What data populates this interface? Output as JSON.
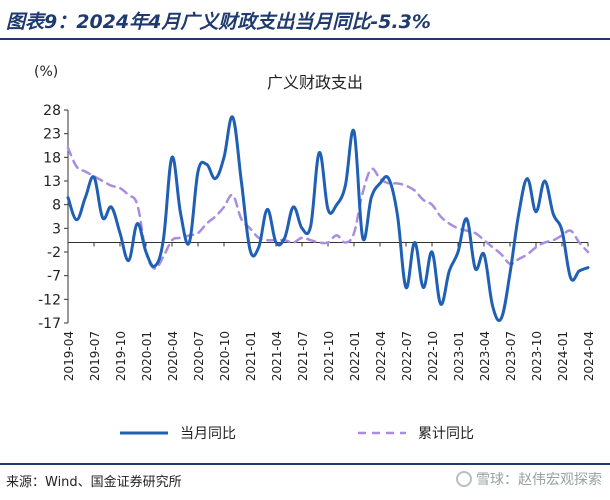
{
  "header": {
    "title": "图表9：2024年4月广义财政支出当月同比-5.3%"
  },
  "footer": {
    "source": "来源：Wind、国金证券研究所",
    "watermark": "雪球：赵伟宏观探索"
  },
  "chart_data": {
    "type": "line",
    "title": "广义财政支出",
    "y_unit": "(%)",
    "ylim": [
      -17,
      28
    ],
    "yticks": [
      28,
      23,
      18,
      13,
      8,
      3,
      -2,
      -7,
      -12,
      -17
    ],
    "baseline": 0,
    "x": [
      "2019-04",
      "2019-05",
      "2019-06",
      "2019-07",
      "2019-08",
      "2019-09",
      "2019-10",
      "2019-11",
      "2019-12",
      "2020-01",
      "2020-02",
      "2020-03",
      "2020-04",
      "2020-05",
      "2020-06",
      "2020-07",
      "2020-08",
      "2020-09",
      "2020-10",
      "2020-11",
      "2020-12",
      "2021-01",
      "2021-02",
      "2021-03",
      "2021-04",
      "2021-05",
      "2021-06",
      "2021-07",
      "2021-08",
      "2021-09",
      "2021-10",
      "2021-11",
      "2021-12",
      "2022-01",
      "2022-02",
      "2022-03",
      "2022-04",
      "2022-05",
      "2022-06",
      "2022-07",
      "2022-08",
      "2022-09",
      "2022-10",
      "2022-11",
      "2022-12",
      "2023-01",
      "2023-02",
      "2023-03",
      "2023-04",
      "2023-05",
      "2023-06",
      "2023-07",
      "2023-08",
      "2023-09",
      "2023-10",
      "2023-11",
      "2023-12",
      "2024-01",
      "2024-02",
      "2024-03",
      "2024-04"
    ],
    "xtick_labels": [
      "2019-04",
      "2019-07",
      "2019-10",
      "2020-01",
      "2020-04",
      "2020-07",
      "2020-10",
      "2021-01",
      "2021-04",
      "2021-07",
      "2021-10",
      "2022-01",
      "2022-04",
      "2022-07",
      "2022-10",
      "2023-01",
      "2023-04",
      "2023-07",
      "2023-10",
      "2024-01",
      "2024-04"
    ],
    "series": [
      {
        "name": "当月同比",
        "color": "#1f5fb4",
        "style": "solid",
        "values": [
          9.5,
          4.8,
          9.5,
          13.8,
          5.2,
          7.5,
          2.0,
          -3.8,
          4.0,
          -2.0,
          -5.0,
          0.5,
          18.0,
          6.0,
          0.0,
          15.0,
          16.5,
          13.5,
          18.0,
          26.5,
          13.0,
          -1.5,
          -1.0,
          7.0,
          0.0,
          1.0,
          7.5,
          3.0,
          3.5,
          19.0,
          7.0,
          8.0,
          12.0,
          23.5,
          1.0,
          9.5,
          12.5,
          13.5,
          6.0,
          -9.5,
          0.0,
          -9.5,
          -2.0,
          -13.0,
          -6.0,
          -2.0,
          5.0,
          -5.5,
          -2.5,
          -13.5,
          -16.0,
          -6.5,
          6.0,
          13.5,
          6.5,
          13.0,
          6.0,
          2.5,
          -7.5,
          -6.0,
          -5.3
        ]
      },
      {
        "name": "累计同比",
        "color": "#a88de0",
        "style": "dashed",
        "values": [
          20.0,
          16.0,
          15.0,
          14.0,
          13.0,
          12.0,
          11.5,
          10.0,
          8.0,
          -2.0,
          -5.5,
          -3.0,
          0.5,
          1.0,
          1.5,
          2.0,
          4.0,
          5.5,
          7.5,
          10.0,
          5.0,
          3.0,
          1.0,
          0.5,
          0.5,
          0.5,
          0.0,
          1.0,
          0.5,
          0.0,
          0.0,
          1.5,
          0.0,
          2.0,
          10.5,
          15.5,
          13.5,
          12.5,
          12.5,
          12.0,
          11.0,
          9.0,
          8.0,
          5.5,
          4.0,
          3.0,
          2.5,
          2.0,
          0.5,
          -1.0,
          -2.5,
          -4.5,
          -3.5,
          -2.5,
          -1.0,
          0.0,
          0.5,
          1.5,
          2.5,
          0.0,
          -2.0
        ]
      }
    ],
    "grid": false,
    "legend": "bottom"
  }
}
